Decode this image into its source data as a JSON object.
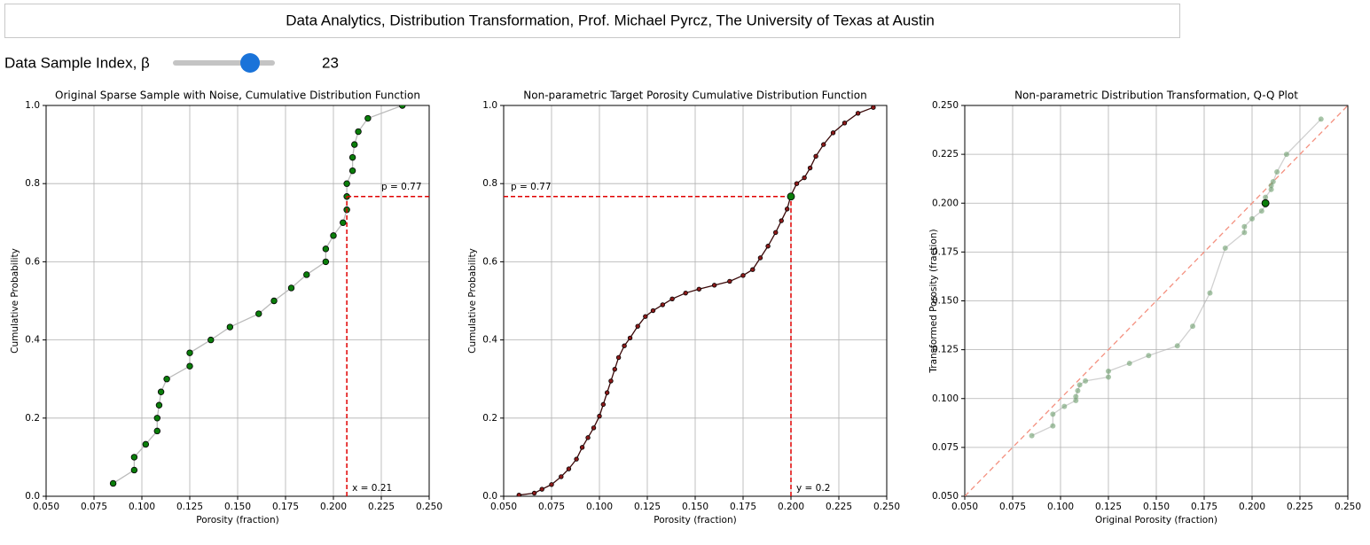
{
  "header": {
    "title": "Data Analytics, Distribution Transformation, Prof. Michael Pyrcz, The University of Texas at Austin"
  },
  "controls": {
    "slider": {
      "label": "Data Sample Index, β",
      "value": 23
    }
  },
  "chart_data": [
    {
      "type": "cdf",
      "title": "Original Sparse Sample with Noise, Cumulative Distribution Function",
      "xlabel": "Porosity (fraction)",
      "ylabel": "Cumulative Probability",
      "xlim": [
        0.05,
        0.25
      ],
      "ylim": [
        0,
        1
      ],
      "xticks": [
        {
          "value": 0.05,
          "label": "0.050"
        },
        0.075,
        {
          "value": 0.1,
          "label": "0.100"
        },
        0.125,
        {
          "value": 0.15,
          "label": "0.150"
        },
        0.175,
        {
          "value": 0.2,
          "label": "0.200"
        },
        0.225,
        {
          "value": 0.25,
          "label": "0.250"
        }
      ],
      "yticks": [
        {
          "value": 0,
          "label": "0.0"
        },
        0.2,
        0.4,
        0.6,
        0.8,
        {
          "value": 1,
          "label": "1.0"
        }
      ],
      "grid": true,
      "guide_side": "right",
      "annotations": [
        "p = 0.77",
        "x = 0.21"
      ],
      "series": [
        {
          "color": "#0a7d0a",
          "line_color": "#bbbbbb",
          "x": [
            0.085,
            0.096,
            0.096,
            0.102,
            0.108,
            0.108,
            0.109,
            0.11,
            0.113,
            0.125,
            0.125,
            0.136,
            0.146,
            0.161,
            0.169,
            0.178,
            0.186,
            0.196,
            0.196,
            0.2,
            0.205,
            0.207,
            0.207,
            0.207,
            0.21,
            0.21,
            0.211,
            0.213,
            0.218,
            0.236
          ],
          "values": [
            0.033,
            0.067,
            0.1,
            0.133,
            0.167,
            0.2,
            0.233,
            0.267,
            0.3,
            0.333,
            0.367,
            0.4,
            0.433,
            0.467,
            0.5,
            0.533,
            0.567,
            0.6,
            0.633,
            0.667,
            0.7,
            0.733,
            0.767,
            0.8,
            0.833,
            0.867,
            0.9,
            0.933,
            0.967,
            1.0
          ]
        }
      ]
    },
    {
      "type": "cdf",
      "title": "Non-parametric Target Porosity Cumulative Distribution Function",
      "xlabel": "Porosity (fraction)",
      "ylabel": "Cumulative Probability",
      "xlim": [
        0.05,
        0.25
      ],
      "ylim": [
        0,
        1
      ],
      "xticks": [
        {
          "value": 0.05,
          "label": "0.050"
        },
        0.075,
        {
          "value": 0.1,
          "label": "0.100"
        },
        0.125,
        {
          "value": 0.15,
          "label": "0.150"
        },
        0.175,
        {
          "value": 0.2,
          "label": "0.200"
        },
        0.225,
        {
          "value": 0.25,
          "label": "0.250"
        }
      ],
      "yticks": [
        {
          "value": 0,
          "label": "0.0"
        },
        0.2,
        0.4,
        0.6,
        0.8,
        {
          "value": 1,
          "label": "1.0"
        }
      ],
      "grid": true,
      "guide_side": "left",
      "annotations": [
        "p = 0.77",
        "y = 0.2"
      ],
      "selected": {
        "x": 0.2,
        "y": 0.767,
        "color": "#0a7d0a"
      },
      "series": [
        {
          "color": "#8b1a1a",
          "line_color": "#3a0808",
          "x": [
            0.058,
            0.066,
            0.07,
            0.075,
            0.08,
            0.084,
            0.088,
            0.091,
            0.094,
            0.097,
            0.1,
            0.102,
            0.104,
            0.106,
            0.108,
            0.11,
            0.113,
            0.116,
            0.12,
            0.124,
            0.128,
            0.133,
            0.138,
            0.145,
            0.152,
            0.16,
            0.168,
            0.175,
            0.18,
            0.184,
            0.188,
            0.192,
            0.195,
            0.198,
            0.2,
            0.203,
            0.207,
            0.21,
            0.213,
            0.217,
            0.222,
            0.228,
            0.235,
            0.243
          ],
          "values": [
            0.003,
            0.008,
            0.018,
            0.03,
            0.05,
            0.07,
            0.095,
            0.125,
            0.15,
            0.175,
            0.205,
            0.235,
            0.265,
            0.295,
            0.325,
            0.355,
            0.385,
            0.405,
            0.435,
            0.46,
            0.475,
            0.49,
            0.505,
            0.52,
            0.53,
            0.54,
            0.55,
            0.565,
            0.58,
            0.61,
            0.64,
            0.675,
            0.705,
            0.735,
            0.77,
            0.8,
            0.815,
            0.84,
            0.87,
            0.9,
            0.93,
            0.955,
            0.98,
            0.995
          ]
        }
      ]
    },
    {
      "type": "qq",
      "title": "Non-parametric Distribution Transformation, Q-Q Plot",
      "xlabel": "Original Porosity (fraction)",
      "ylabel": "Transformed Porosity (fraction)",
      "xlim": [
        0.05,
        0.25
      ],
      "ylim": [
        0.05,
        0.25
      ],
      "xticks": [
        {
          "value": 0.05,
          "label": "0.050"
        },
        0.075,
        {
          "value": 0.1,
          "label": "0.100"
        },
        0.125,
        {
          "value": 0.15,
          "label": "0.150"
        },
        0.175,
        {
          "value": 0.2,
          "label": "0.200"
        },
        0.225,
        {
          "value": 0.25,
          "label": "0.250"
        }
      ],
      "yticks": [
        {
          "value": 0.05,
          "label": "0.050"
        },
        0.075,
        {
          "value": 0.1,
          "label": "0.100"
        },
        0.125,
        {
          "value": 0.15,
          "label": "0.150"
        },
        0.175,
        {
          "value": 0.2,
          "label": "0.200"
        },
        0.225,
        {
          "value": 0.25,
          "label": "0.250"
        }
      ],
      "grid": true,
      "reference_color": "#f4907f",
      "series": [
        {
          "color": "#6f9f6f",
          "line_color": "#b0b0b0",
          "selected_color": "#0a7d0a",
          "x": [
            0.085,
            0.096,
            0.096,
            0.102,
            0.108,
            0.108,
            0.109,
            0.11,
            0.113,
            0.125,
            0.125,
            0.136,
            0.146,
            0.161,
            0.169,
            0.178,
            0.186,
            0.196,
            0.196,
            0.2,
            0.205,
            0.207,
            0.207,
            0.207,
            0.21,
            0.21,
            0.211,
            0.213,
            0.218,
            0.236
          ],
          "values": [
            0.081,
            0.086,
            0.092,
            0.096,
            0.099,
            0.101,
            0.104,
            0.107,
            0.109,
            0.111,
            0.114,
            0.118,
            0.122,
            0.127,
            0.137,
            0.154,
            0.177,
            0.185,
            0.188,
            0.192,
            0.196,
            0.199,
            0.2,
            0.203,
            0.207,
            0.209,
            0.211,
            0.216,
            0.225,
            0.243
          ]
        }
      ]
    }
  ]
}
